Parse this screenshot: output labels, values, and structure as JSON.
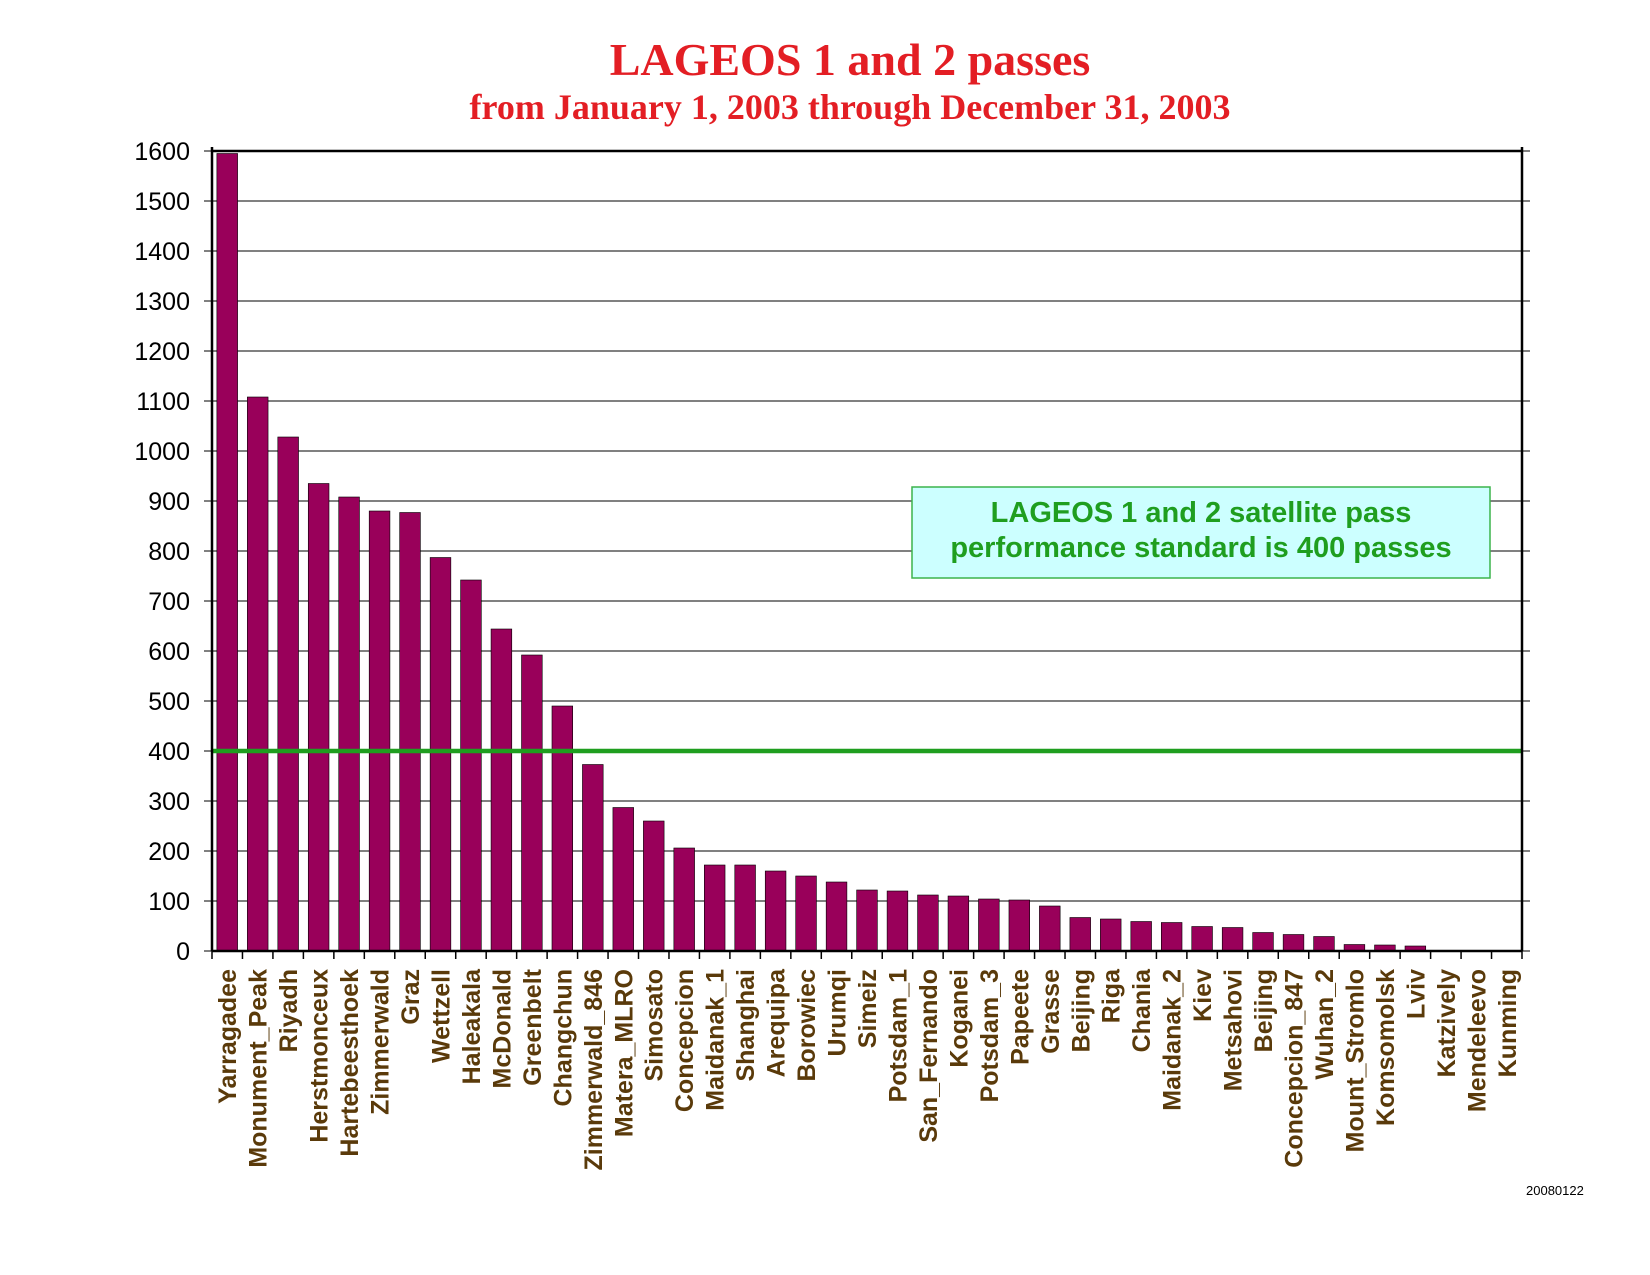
{
  "colors": {
    "title": "#e31e24",
    "bar": "#99005a",
    "standard_line": "#1f9e1f",
    "annotation_bg": "#ccffff",
    "annotation_border": "#3cb44b",
    "annotation_text": "#1f9e1f",
    "grid": "#000000"
  },
  "footer": {
    "stamp": "20080122"
  },
  "chart_data": {
    "type": "bar",
    "title": "LAGEOS 1 and 2 passes",
    "subtitle": "from January 1, 2003 through December 31, 2003",
    "xlabel": "",
    "ylabel": "",
    "ylim": [
      0,
      1600
    ],
    "yticks": [
      0,
      100,
      200,
      300,
      400,
      500,
      600,
      700,
      800,
      900,
      1000,
      1100,
      1200,
      1300,
      1400,
      1500,
      1600
    ],
    "grid": true,
    "categories": [
      "Yarragadee",
      "Monument_Peak",
      "Riyadh",
      "Herstmonceux",
      "Hartebeesthoek",
      "Zimmerwald",
      "Graz",
      "Wettzell",
      "Haleakala",
      "McDonald",
      "Greenbelt",
      "Changchun",
      "Zimmerwald_846",
      "Matera_MLRO",
      "Simosato",
      "Concepcion",
      "Maidanak_1",
      "Shanghai",
      "Arequipa",
      "Borowiec",
      "Urumqi",
      "Simeiz",
      "Potsdam_1",
      "San_Fernando",
      "Koganei",
      "Potsdam_3",
      "Papeete",
      "Grasse",
      "Beijing",
      "Riga",
      "Chania",
      "Maidanak_2",
      "Kiev",
      "Metsahovi",
      "Beijing",
      "Concepcion_847",
      "Wuhan_2",
      "Mount_Stromlo",
      "Komsomolsk",
      "Lviv",
      "Katzively",
      "Mendeleevo",
      "Kunming"
    ],
    "values": [
      1595,
      1108,
      1028,
      935,
      908,
      880,
      877,
      787,
      742,
      644,
      592,
      490,
      373,
      287,
      260,
      206,
      172,
      172,
      160,
      150,
      138,
      122,
      120,
      112,
      110,
      104,
      102,
      90,
      67,
      64,
      59,
      57,
      49,
      47,
      37,
      33,
      29,
      13,
      12,
      10,
      0,
      0,
      0
    ],
    "reference_line": {
      "value": 400
    },
    "annotation": {
      "line1": "LAGEOS 1 and 2 satellite pass",
      "line2": "performance standard is 400 passes"
    }
  }
}
